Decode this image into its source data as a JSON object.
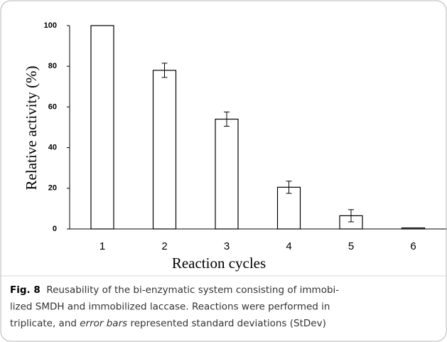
{
  "chart_data": {
    "type": "bar",
    "x_label": "Reaction cycles",
    "y_label": "Relative activity (%)",
    "categories": [
      "1",
      "2",
      "3",
      "4",
      "5",
      "6"
    ],
    "values": [
      100,
      78,
      54,
      20.5,
      6.5,
      0.5
    ],
    "errors": [
      null,
      3.5,
      3.5,
      3,
      3,
      null
    ],
    "color": "#ffffff",
    "ylim": [
      0,
      100
    ],
    "yticks": [
      0,
      20,
      40,
      60,
      80,
      100
    ],
    "grid": false
  },
  "caption": {
    "label": "Fig. 8",
    "lines": [
      [
        "Reusability of the bi-enzymatic system consisting of immobi-"
      ],
      [
        "lized SMDH and immobilized laccase. Reactions were performed in"
      ],
      [
        "triplicate, and ",
        "error bars",
        " represented standard deviations (StDev)"
      ]
    ]
  }
}
